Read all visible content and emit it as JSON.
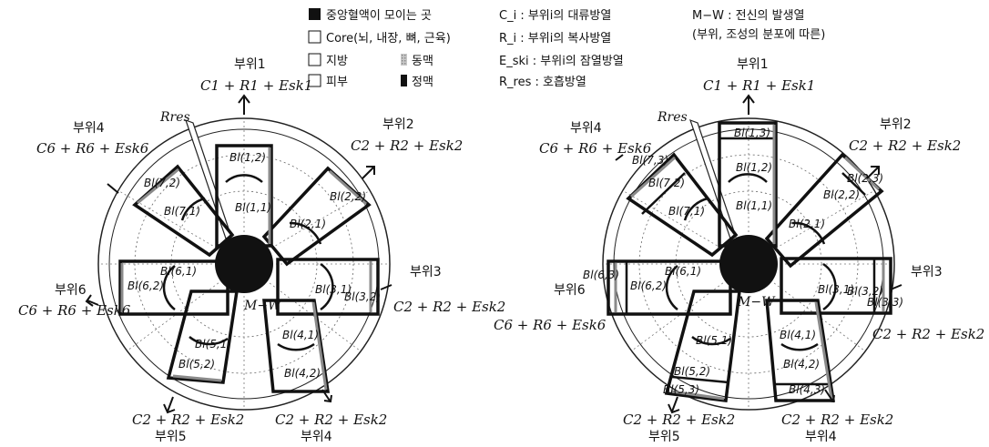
{
  "legend": {
    "central": "중앙혈액이 모이는 곳",
    "core": "Core(뇌, 내장, 뼈, 근육)",
    "fat": "지방",
    "artery": "동맥",
    "skin": "피부",
    "vein": "정맥",
    "c_i": "C_i : 부위i의 대류방열",
    "r_i": "R_i : 부위i의 복사방열",
    "e_ski": "E_ski : 부위i의 잠열방열",
    "r_res": "R_res : 호흡방열",
    "mw_line1": "M−W : 전신의 발생열",
    "mw_line2": "(부위, 조성의 분포에 따른)"
  },
  "left": {
    "seg_labels": [
      "부위1",
      "부위2",
      "부위3",
      "부위6",
      "부위4",
      "부위5",
      "부위4"
    ],
    "equations": [
      "C1 + R1 + Esk1",
      "C2 + R2 + Esk2",
      "C2 + R2 + Esk2",
      "C6 + R6 + Esk6",
      "C6 + R6 + Esk6",
      "C2 + R2 + Esk2",
      "C2 + R2 + Esk2"
    ],
    "rres": "Rres",
    "mw": "M−W",
    "blocks": [
      "Bl(1,1)",
      "Bl(1,2)",
      "Bl(2,1)",
      "Bl(2,2)",
      "Bl(3,1)",
      "Bl(3,2)",
      "Bl(4,1)",
      "Bl(4,2)",
      "Bl(5,1)",
      "Bl(5,2)",
      "Bl(6,1)",
      "Bl(6,2)",
      "Bl(7,1)",
      "Bl(7,2)"
    ]
  },
  "right": {
    "seg_labels": [
      "부위1",
      "부위2",
      "부위3",
      "부위6",
      "부위4",
      "부위5",
      "부위4"
    ],
    "equations": [
      "C1 + R1 + Esk1",
      "C2 + R2 + Esk2",
      "C2 + R2 + Esk2",
      "C6 + R6 + Esk6",
      "C6 + R6 + Esk6",
      "C2 + R2 + Esk2",
      "C2 + R2 + Esk2"
    ],
    "rres": "Rres",
    "mw": "M−W",
    "blocks": [
      "Bl(1,1)",
      "Bl(1,2)",
      "Bl(1,3)",
      "Bl(2,1)",
      "Bl(2,2)",
      "Bl(2,3)",
      "Bl(3,1)",
      "Bl(3,2)",
      "Bl(3,3)",
      "Bl(4,1)",
      "Bl(4,2)",
      "Bl(4,3)",
      "Bl(5,1)",
      "Bl(5,2)",
      "Bl(5,3)",
      "Bl(6,1)",
      "Bl(6,2)",
      "Bl(6,3)",
      "Bl(7,1)",
      "Bl(7,2)",
      "Bl(7,3)"
    ]
  }
}
